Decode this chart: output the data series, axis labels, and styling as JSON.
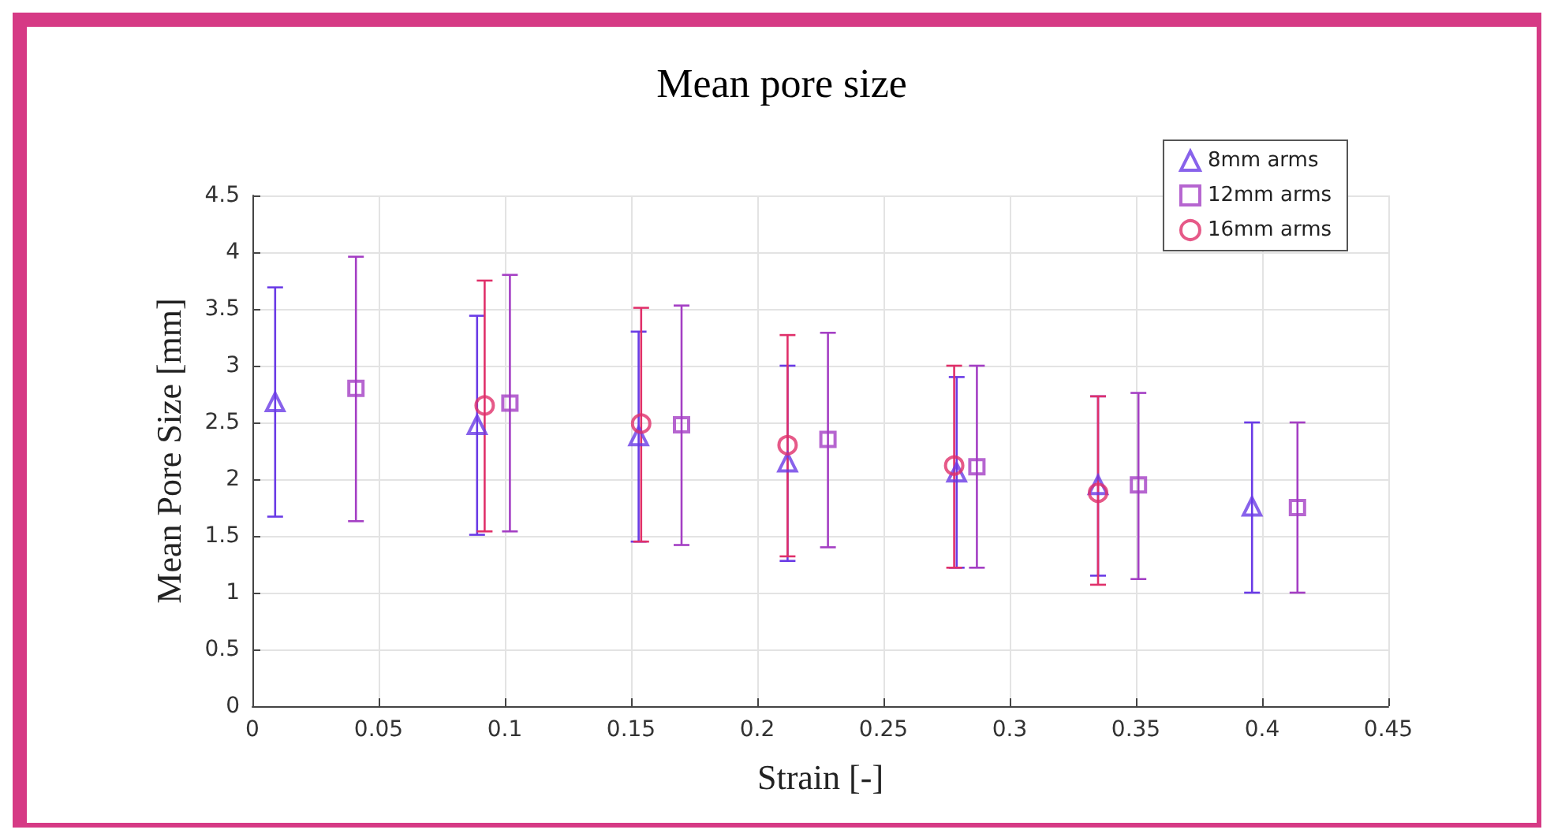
{
  "chart_data": {
    "type": "scatter",
    "title": "Mean pore size",
    "xlabel": "Strain [-]",
    "ylabel": "Mean Pore Size [mm]",
    "xlim": [
      0,
      0.45
    ],
    "xticks": [
      0,
      0.05,
      0.1,
      0.15,
      0.2,
      0.25,
      0.3,
      0.35,
      0.4,
      0.45
    ],
    "ylim": [
      0,
      4.5
    ],
    "yticks": [
      0,
      0.5,
      1,
      1.5,
      2,
      2.5,
      3,
      3.5,
      4,
      4.5
    ],
    "grid": true,
    "legend": "top right",
    "series": [
      {
        "name": "8mm arms",
        "color": "#6a3be6",
        "marker": "triangle",
        "x": [
          0.009,
          0.089,
          0.153,
          0.212,
          0.279,
          0.335,
          0.396
        ],
        "values": [
          2.68,
          2.48,
          2.38,
          2.15,
          2.06,
          1.95,
          1.76
        ],
        "errors": [
          [
            1.67,
            3.69
          ],
          [
            1.51,
            3.44
          ],
          [
            1.45,
            3.3
          ],
          [
            1.28,
            3.0
          ],
          [
            1.22,
            2.9
          ],
          [
            1.15,
            2.73
          ],
          [
            1.0,
            2.5
          ]
        ]
      },
      {
        "name": "12mm arms",
        "color": "#a43fc4",
        "marker": "square",
        "x": [
          0.041,
          0.102,
          0.17,
          0.228,
          0.287,
          0.351,
          0.414
        ],
        "values": [
          2.8,
          2.67,
          2.48,
          2.35,
          2.11,
          1.95,
          1.75
        ],
        "errors": [
          [
            1.63,
            3.96
          ],
          [
            1.54,
            3.8
          ],
          [
            1.42,
            3.53
          ],
          [
            1.4,
            3.29
          ],
          [
            1.22,
            3.0
          ],
          [
            1.12,
            2.76
          ],
          [
            1.0,
            2.5
          ]
        ]
      },
      {
        "name": "16mm arms",
        "color": "#e0306a",
        "marker": "circle",
        "x": [
          0.092,
          0.154,
          0.212,
          0.278,
          0.335
        ],
        "values": [
          2.65,
          2.49,
          2.3,
          2.12,
          1.88
        ],
        "errors": [
          [
            1.54,
            3.75
          ],
          [
            1.45,
            3.51
          ],
          [
            1.32,
            3.27
          ],
          [
            1.22,
            3.0
          ],
          [
            1.07,
            2.73
          ]
        ]
      }
    ]
  }
}
